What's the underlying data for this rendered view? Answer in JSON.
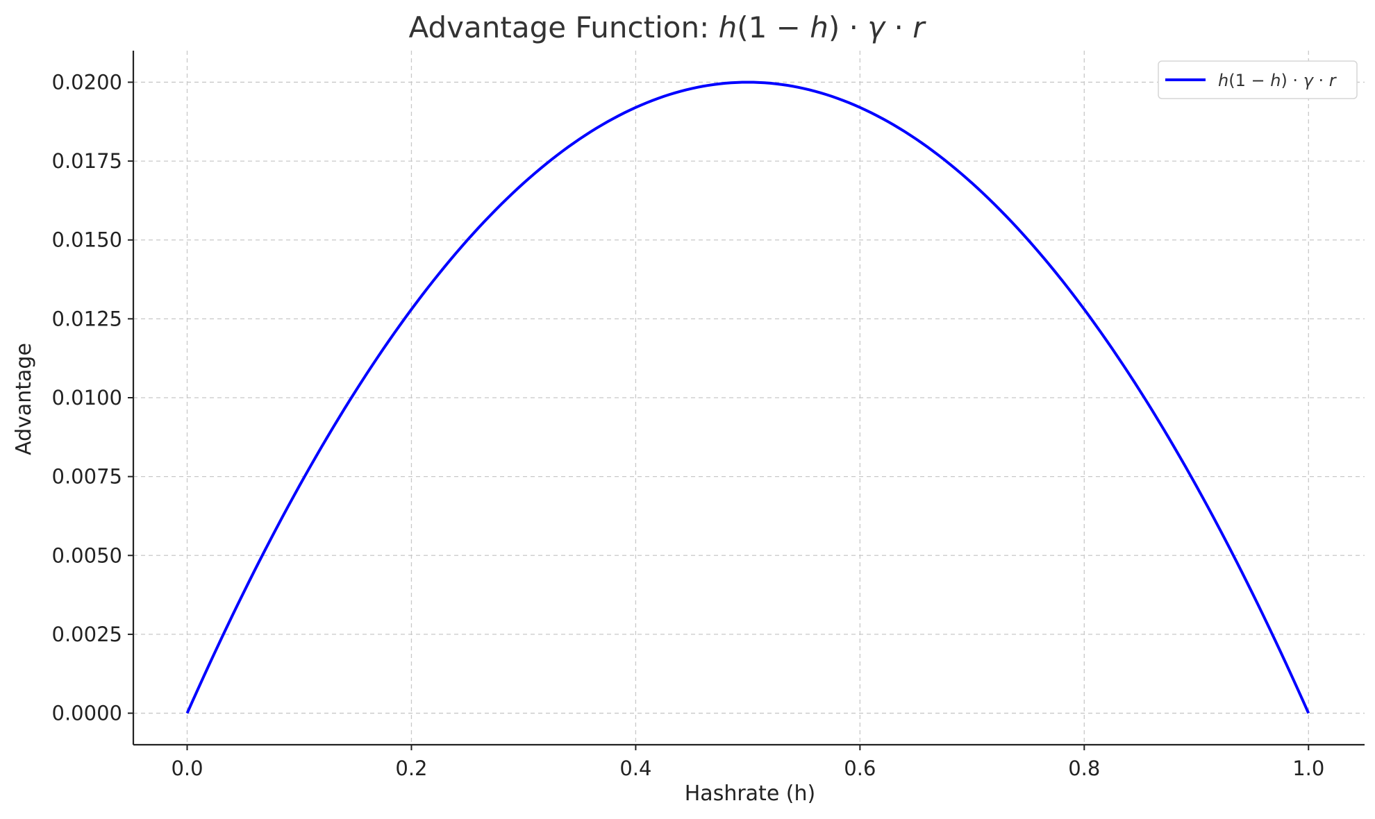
{
  "chart_data": {
    "type": "line",
    "title": {
      "prefix": "Advantage Function: ",
      "formula": [
        {
          "text": "h",
          "italic": true
        },
        {
          "text": "(1 − ",
          "italic": false
        },
        {
          "text": "h",
          "italic": true
        },
        {
          "text": ") · ",
          "italic": false
        },
        {
          "text": "γ",
          "italic": true
        },
        {
          "text": " · ",
          "italic": false
        },
        {
          "text": "r",
          "italic": true
        }
      ]
    },
    "xlabel": "Hashrate (h)",
    "ylabel": "Advantage",
    "xlim": [
      -0.048,
      1.05
    ],
    "ylim": [
      -0.001,
      0.021
    ],
    "x_ticks": [
      0.0,
      0.2,
      0.4,
      0.6,
      0.8,
      1.0
    ],
    "x_tick_labels": [
      "0.0",
      "0.2",
      "0.4",
      "0.6",
      "0.8",
      "1.0"
    ],
    "y_ticks": [
      0.0,
      0.0025,
      0.005,
      0.0075,
      0.01,
      0.0125,
      0.015,
      0.0175,
      0.02
    ],
    "y_tick_labels": [
      "0.0000",
      "0.0025",
      "0.0050",
      "0.0075",
      "0.0100",
      "0.0125",
      "0.0150",
      "0.0175",
      "0.0200"
    ],
    "grid": true,
    "legend_position": "top-right",
    "series": [
      {
        "name": "h(1 − h) · γ · r",
        "color": "#0000ff",
        "x": [
          0.0,
          0.05,
          0.1,
          0.15,
          0.2,
          0.25,
          0.3,
          0.35,
          0.4,
          0.45,
          0.5,
          0.55,
          0.6,
          0.65,
          0.7,
          0.75,
          0.8,
          0.85,
          0.9,
          0.95,
          1.0
        ],
        "y": [
          0.0,
          0.0038,
          0.0072,
          0.0102,
          0.0128,
          0.015,
          0.0168,
          0.0182,
          0.0192,
          0.0198,
          0.02,
          0.0198,
          0.0192,
          0.0182,
          0.0168,
          0.015,
          0.0128,
          0.0102,
          0.0072,
          0.0038,
          0.0
        ]
      }
    ],
    "legend_formula": [
      {
        "text": "h",
        "italic": true
      },
      {
        "text": "(1 − ",
        "italic": false
      },
      {
        "text": "h",
        "italic": true
      },
      {
        "text": ") · ",
        "italic": false
      },
      {
        "text": "γ",
        "italic": true
      },
      {
        "text": " · ",
        "italic": false
      },
      {
        "text": "r",
        "italic": true
      }
    ]
  }
}
